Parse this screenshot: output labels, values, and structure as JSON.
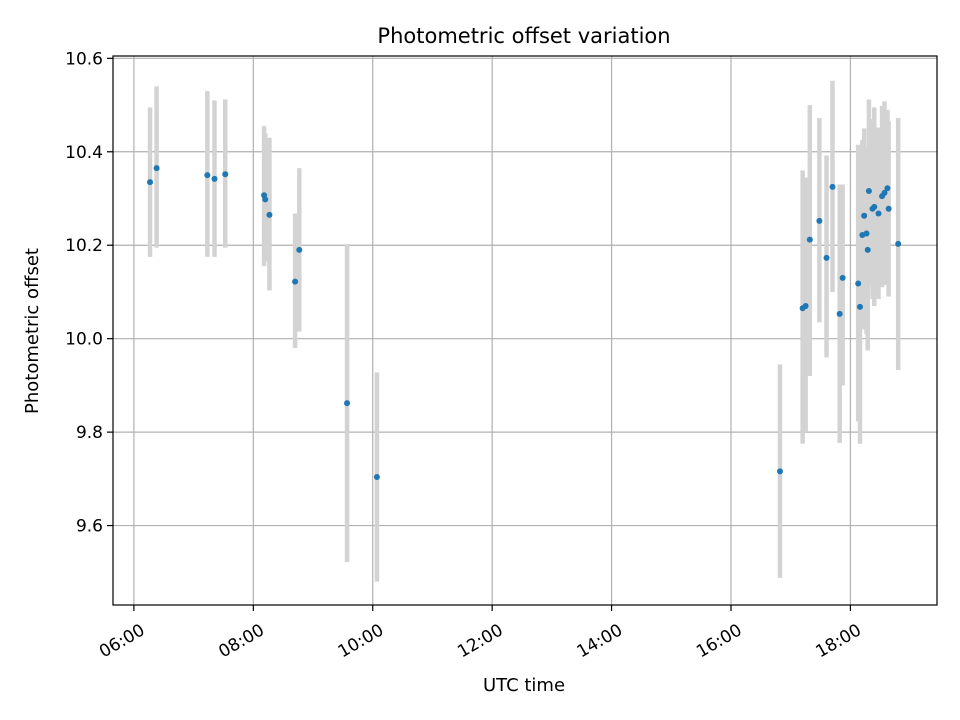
{
  "chart_data": {
    "type": "scatter",
    "title": "Photometric offset variation",
    "xlabel": "UTC time",
    "ylabel": "Photometric offset",
    "xlim_hours": [
      5.65,
      19.45
    ],
    "ylim": [
      9.43,
      10.605
    ],
    "x_ticks": [
      {
        "hour": 6,
        "label": "06:00"
      },
      {
        "hour": 8,
        "label": "08:00"
      },
      {
        "hour": 10,
        "label": "10:00"
      },
      {
        "hour": 12,
        "label": "12:00"
      },
      {
        "hour": 14,
        "label": "14:00"
      },
      {
        "hour": 16,
        "label": "16:00"
      },
      {
        "hour": 18,
        "label": "18:00"
      }
    ],
    "y_ticks": [
      {
        "value": 9.6,
        "label": "9.6"
      },
      {
        "value": 9.8,
        "label": "9.8"
      },
      {
        "value": 10.0,
        "label": "10.0"
      },
      {
        "value": 10.2,
        "label": "10.2"
      },
      {
        "value": 10.4,
        "label": "10.4"
      },
      {
        "value": 10.6,
        "label": "10.6"
      }
    ],
    "grid": true,
    "marker_color": "#1f77b4",
    "errorbar_color": "#d3d3d3",
    "points": [
      {
        "t": 6.27,
        "y": 10.335,
        "lo": 10.175,
        "hi": 10.495
      },
      {
        "t": 6.38,
        "y": 10.365,
        "lo": 10.195,
        "hi": 10.54
      },
      {
        "t": 7.23,
        "y": 10.35,
        "lo": 10.175,
        "hi": 10.53
      },
      {
        "t": 7.35,
        "y": 10.342,
        "lo": 10.175,
        "hi": 10.51
      },
      {
        "t": 7.53,
        "y": 10.352,
        "lo": 10.195,
        "hi": 10.512
      },
      {
        "t": 8.18,
        "y": 10.307,
        "lo": 10.155,
        "hi": 10.455
      },
      {
        "t": 8.2,
        "y": 10.298,
        "lo": 10.165,
        "hi": 10.44
      },
      {
        "t": 8.27,
        "y": 10.265,
        "lo": 10.103,
        "hi": 10.43
      },
      {
        "t": 8.7,
        "y": 10.122,
        "lo": 9.98,
        "hi": 10.268
      },
      {
        "t": 8.77,
        "y": 10.19,
        "lo": 10.015,
        "hi": 10.365
      },
      {
        "t": 9.57,
        "y": 9.862,
        "lo": 9.522,
        "hi": 10.202
      },
      {
        "t": 10.07,
        "y": 9.704,
        "lo": 9.48,
        "hi": 9.928
      },
      {
        "t": 16.82,
        "y": 9.716,
        "lo": 9.488,
        "hi": 9.945
      },
      {
        "t": 17.2,
        "y": 10.065,
        "lo": 9.775,
        "hi": 10.36
      },
      {
        "t": 17.25,
        "y": 10.07,
        "lo": 9.8,
        "hi": 10.345
      },
      {
        "t": 17.32,
        "y": 10.212,
        "lo": 9.92,
        "hi": 10.5
      },
      {
        "t": 17.48,
        "y": 10.252,
        "lo": 10.035,
        "hi": 10.472
      },
      {
        "t": 17.6,
        "y": 10.173,
        "lo": 9.96,
        "hi": 10.392
      },
      {
        "t": 17.7,
        "y": 10.325,
        "lo": 10.1,
        "hi": 10.552
      },
      {
        "t": 17.82,
        "y": 10.053,
        "lo": 9.777,
        "hi": 10.33
      },
      {
        "t": 17.87,
        "y": 10.13,
        "lo": 9.9,
        "hi": 10.33
      },
      {
        "t": 18.13,
        "y": 10.118,
        "lo": 9.823,
        "hi": 10.415
      },
      {
        "t": 18.16,
        "y": 10.068,
        "lo": 9.775,
        "hi": 10.38
      },
      {
        "t": 18.2,
        "y": 10.222,
        "lo": 10.02,
        "hi": 10.425
      },
      {
        "t": 18.23,
        "y": 10.263,
        "lo": 10.06,
        "hi": 10.45
      },
      {
        "t": 18.27,
        "y": 10.225,
        "lo": 10.01,
        "hi": 10.4
      },
      {
        "t": 18.29,
        "y": 10.19,
        "lo": 9.975,
        "hi": 10.41
      },
      {
        "t": 18.31,
        "y": 10.316,
        "lo": 10.115,
        "hi": 10.512
      },
      {
        "t": 18.37,
        "y": 10.278,
        "lo": 10.085,
        "hi": 10.47
      },
      {
        "t": 18.4,
        "y": 10.282,
        "lo": 10.07,
        "hi": 10.495
      },
      {
        "t": 18.47,
        "y": 10.268,
        "lo": 10.085,
        "hi": 10.452
      },
      {
        "t": 18.53,
        "y": 10.305,
        "lo": 10.11,
        "hi": 10.498
      },
      {
        "t": 18.57,
        "y": 10.312,
        "lo": 10.115,
        "hi": 10.508
      },
      {
        "t": 18.62,
        "y": 10.322,
        "lo": 10.13,
        "hi": 10.49
      },
      {
        "t": 18.64,
        "y": 10.278,
        "lo": 10.09,
        "hi": 10.465
      },
      {
        "t": 18.8,
        "y": 10.203,
        "lo": 9.933,
        "hi": 10.472
      }
    ]
  }
}
